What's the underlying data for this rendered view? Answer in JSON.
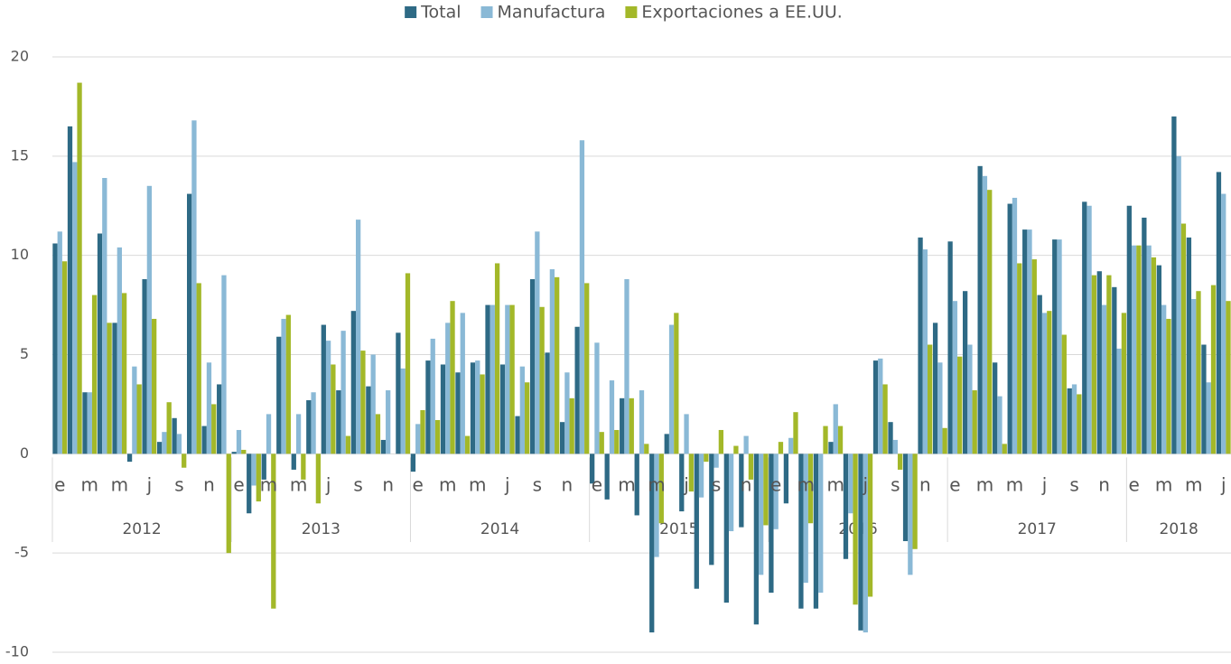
{
  "chart_data": {
    "type": "bar",
    "categories": [
      "e",
      null,
      "m",
      null,
      "m",
      null,
      "j",
      null,
      "s",
      null,
      "n",
      null,
      "e",
      null,
      "m",
      null,
      "m",
      null,
      "j",
      null,
      "s",
      null,
      "n",
      null,
      "e",
      null,
      "m",
      null,
      "m",
      null,
      "j",
      null,
      "s",
      null,
      "n",
      null,
      "e",
      null,
      "m",
      null,
      "m",
      null,
      "j",
      null,
      "s",
      null,
      "n",
      null,
      "e",
      null,
      "m",
      null,
      "m",
      null,
      "j",
      null,
      "s",
      null,
      "n",
      null,
      "e",
      null,
      "m",
      null,
      "m",
      null,
      "j",
      null,
      "s",
      null,
      "n",
      null,
      "e",
      null,
      "m",
      null,
      "m",
      null,
      "j"
    ],
    "years": [
      "2012",
      "2013",
      "2014",
      "2015",
      "2016",
      "2017",
      "2018"
    ],
    "series": [
      {
        "name": "Total",
        "color": "#2e6a85",
        "values": [
          10.6,
          16.5,
          3.1,
          11.1,
          6.6,
          -0.4,
          8.8,
          0.6,
          1.8,
          13.1,
          1.4,
          3.5,
          0.1,
          -3.0,
          -1.3,
          5.9,
          -0.8,
          2.7,
          6.5,
          3.2,
          7.2,
          3.4,
          0.7,
          6.1,
          -0.9,
          4.7,
          4.5,
          4.1,
          4.6,
          7.5,
          4.5,
          1.9,
          8.8,
          5.1,
          1.6,
          6.4,
          -1.5,
          -2.3,
          2.8,
          -3.1,
          -9.0,
          1.0,
          -2.9,
          -6.8,
          -5.6,
          -7.5,
          -3.7,
          -8.6,
          -7.0,
          -2.5,
          -7.8,
          -7.8,
          0.6,
          -5.3,
          -8.9,
          4.7,
          1.6,
          -4.4,
          10.9,
          6.6,
          10.7,
          8.2,
          14.5,
          4.6,
          12.6,
          11.3,
          8.0,
          10.8,
          3.3,
          12.7,
          9.2,
          8.4,
          12.5,
          11.9,
          9.5,
          17.0,
          10.9,
          5.5,
          14.2
        ]
      },
      {
        "name": "Manufactura",
        "color": "#8ab9d6",
        "values": [
          11.2,
          14.7,
          3.1,
          13.9,
          10.4,
          4.4,
          13.5,
          1.1,
          1.0,
          16.8,
          4.6,
          9.0,
          1.2,
          -1.6,
          2.0,
          6.8,
          2.0,
          3.1,
          5.7,
          6.2,
          11.8,
          5.0,
          3.2,
          4.3,
          1.5,
          5.8,
          6.6,
          7.1,
          4.7,
          7.5,
          7.5,
          4.4,
          11.2,
          9.3,
          4.1,
          15.8,
          5.6,
          3.7,
          8.8,
          3.2,
          -5.2,
          6.5,
          2.0,
          -2.2,
          -0.7,
          -3.9,
          0.9,
          -6.1,
          -3.8,
          0.8,
          -6.5,
          -7.0,
          2.5,
          -3.0,
          -9.0,
          4.8,
          0.7,
          -6.1,
          10.3,
          4.6,
          7.7,
          5.5,
          14.0,
          2.9,
          12.9,
          11.3,
          7.1,
          10.8,
          3.5,
          12.5,
          7.5,
          5.3,
          10.5,
          10.5,
          7.5,
          15.0,
          7.8,
          3.6,
          13.1
        ]
      },
      {
        "name": "Exportaciones a EE.UU.",
        "color": "#a3b829",
        "values": [
          9.7,
          18.7,
          8.0,
          6.6,
          8.1,
          3.5,
          6.8,
          2.6,
          -0.7,
          8.6,
          2.5,
          -5.0,
          0.2,
          -2.4,
          -7.8,
          7.0,
          -1.3,
          -2.5,
          4.5,
          0.9,
          5.2,
          2.0,
          0.0,
          9.1,
          2.2,
          1.7,
          7.7,
          0.9,
          4.0,
          9.6,
          7.5,
          3.6,
          7.4,
          8.9,
          2.8,
          8.6,
          1.1,
          1.2,
          2.8,
          0.5,
          -3.5,
          7.1,
          -1.9,
          -0.4,
          1.2,
          0.4,
          -1.3,
          -3.6,
          0.6,
          2.1,
          -3.5,
          1.4,
          1.4,
          -7.6,
          -7.2,
          3.5,
          -0.8,
          -4.8,
          5.5,
          1.3,
          4.9,
          3.2,
          13.3,
          0.5,
          9.6,
          9.8,
          7.2,
          6.0,
          3.0,
          9.0,
          9.0,
          7.1,
          10.5,
          9.9,
          6.8,
          11.6,
          8.2,
          8.5,
          7.7
        ]
      }
    ],
    "ylim": [
      -10,
      20
    ],
    "yticks": [
      -10,
      -5,
      0,
      5,
      10,
      15,
      20
    ],
    "grid": true,
    "legend": "top"
  }
}
